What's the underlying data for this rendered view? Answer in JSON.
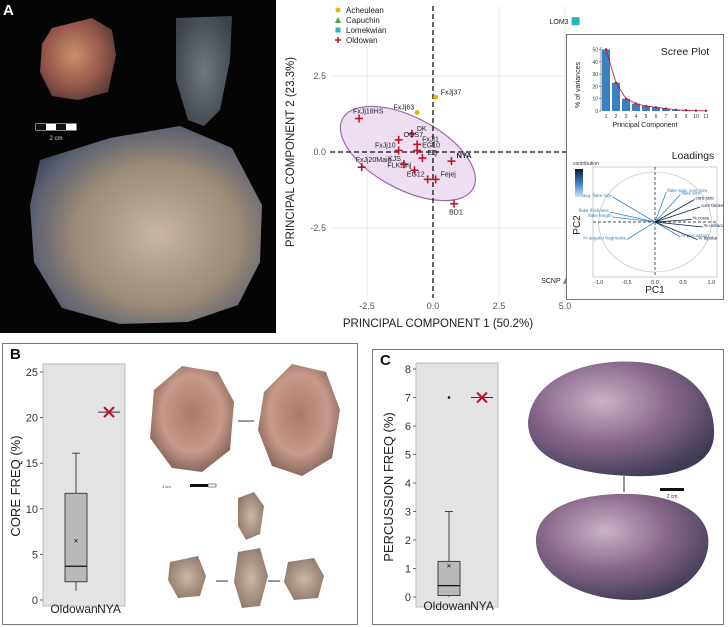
{
  "panel_a": {
    "letter": "A",
    "scale_label": "2 cm"
  },
  "panel_b": {
    "letter": "B",
    "scale_label": "1 cm"
  },
  "panel_c": {
    "letter": "C",
    "scale_label": "2 cm"
  },
  "colors": {
    "acheulean": "#e6b800",
    "capuchin": "#4aa832",
    "lomekwian": "#2bb5b5",
    "oldowan": "#c8102e",
    "ellipse_fill": "#e9d6ee",
    "ellipse_stroke": "#9b6aa8",
    "bar": "#3b7fc0"
  },
  "chart_data": [
    {
      "id": "pca",
      "type": "scatter",
      "xlabel": "PRINCIPAL COMPONENT 1 (50.2%)",
      "ylabel": "PRINCIPAL COMPONENT 2 (23.3%)",
      "xlim": [
        -3.9,
        6.4
      ],
      "ylim": [
        -4.8,
        4.8
      ],
      "x_ticks": [
        -2.5,
        0.0,
        2.5,
        5.0
      ],
      "y_ticks": [
        -2.5,
        0.0,
        2.5
      ],
      "x_tick_labels": [
        "-2.5",
        "0.0",
        "2.5",
        "5.0"
      ],
      "y_tick_labels": [
        "-2.5",
        "0.0",
        "2.5"
      ],
      "legend": [
        {
          "name": "Acheulean",
          "marker": "dot"
        },
        {
          "name": "Capuchin",
          "marker": "triangle"
        },
        {
          "name": "Lomekwian",
          "marker": "square"
        },
        {
          "name": "Oldowan",
          "marker": "plus"
        }
      ],
      "points": [
        {
          "label": "LOM3",
          "group": "Lomekwian",
          "x": 5.4,
          "y": 4.3
        },
        {
          "label": "FxJj37",
          "group": "Acheulean",
          "x": 0.1,
          "y": 1.8
        },
        {
          "label": "FxJj63",
          "group": "Acheulean",
          "x": -0.6,
          "y": 1.3
        },
        {
          "label": "FxJj18HS",
          "group": "Oldowan",
          "x": -2.8,
          "y": 1.1
        },
        {
          "label": "DK",
          "group": "Oldowan",
          "x": -0.8,
          "y": 0.6
        },
        {
          "label": "OGS7",
          "group": "Oldowan",
          "x": -1.3,
          "y": 0.4
        },
        {
          "label": "FxJj1",
          "group": "Oldowan",
          "x": -0.6,
          "y": 0.25
        },
        {
          "label": "FxJj10",
          "group": "Oldowan",
          "x": -1.3,
          "y": 0.05
        },
        {
          "label": "EG10",
          "group": "Oldowan",
          "x": -0.6,
          "y": 0.05
        },
        {
          "label": "KJS",
          "group": "Oldowan",
          "x": -1.1,
          "y": -0.4
        },
        {
          "label": "EQ",
          "group": "Oldowan",
          "x": -0.4,
          "y": -0.2
        },
        {
          "label": "NYA",
          "group": "Oldowan",
          "x": 0.7,
          "y": -0.3
        },
        {
          "label": "FxJj20Main",
          "group": "Oldowan",
          "x": -2.7,
          "y": -0.5
        },
        {
          "label": "FLKZinj",
          "group": "Oldowan",
          "x": -0.7,
          "y": -0.6
        },
        {
          "label": "Fejej",
          "group": "Oldowan",
          "x": 0.1,
          "y": -0.9
        },
        {
          "label": "EG12",
          "group": "Oldowan",
          "x": -0.2,
          "y": -0.9
        },
        {
          "label": "BD1",
          "group": "Oldowan",
          "x": 0.8,
          "y": -1.7
        },
        {
          "label": "SCNP",
          "group": "Capuchin",
          "x": 5.1,
          "y": -4.2
        }
      ]
    },
    {
      "id": "scree",
      "type": "bar",
      "title": "Scree Plot",
      "xlabel": "Principal Component",
      "ylabel": "% of variances",
      "categories": [
        "1",
        "2",
        "3",
        "4",
        "5",
        "6",
        "7",
        "8",
        "9",
        "10",
        "11"
      ],
      "values": [
        50,
        23,
        10,
        6,
        4,
        3,
        2,
        1,
        0.6,
        0.3,
        0.1
      ],
      "ylim": [
        0,
        52
      ],
      "y_ticks": [
        0,
        10,
        20,
        30,
        40,
        50
      ],
      "y_tick_labels": [
        "0",
        "10",
        "20",
        "30",
        "40",
        "50"
      ]
    },
    {
      "id": "loadings",
      "type": "scatter",
      "title": "Loadings",
      "xlabel": "PC1",
      "ylabel": "PC2",
      "xlim": [
        -1.1,
        1.1
      ],
      "ylim": [
        -1.1,
        1.1
      ],
      "x_ticks": [
        -1.0,
        -0.5,
        0.0,
        0.5,
        1.0
      ],
      "x_tick_labels": [
        "-1.0",
        "-0.5",
        "0.0",
        "0.5",
        "1.0"
      ],
      "colorbar_label": "contribution",
      "vectors": [
        {
          "label": "avg. flake size",
          "x": -0.75,
          "y": 0.5
        },
        {
          "label": "flake size: core size",
          "x": 0.2,
          "y": 0.6
        },
        {
          "label": "flake size",
          "x": 0.45,
          "y": 0.55
        },
        {
          "label": "flake thickness",
          "x": -0.8,
          "y": 0.2
        },
        {
          "label": "flake length",
          "x": -0.75,
          "y": 0.1
        },
        {
          "label": "core size",
          "x": 0.7,
          "y": 0.45
        },
        {
          "label": "core thickness",
          "x": 0.8,
          "y": 0.3
        },
        {
          "label": "% cores",
          "x": 0.65,
          "y": 0.05
        },
        {
          "label": "% angular fragments",
          "x": -0.5,
          "y": -0.35
        },
        {
          "label": "% unifacial",
          "x": 0.85,
          "y": -0.1
        },
        {
          "label": "% percussion",
          "x": 0.45,
          "y": -0.3
        },
        {
          "label": "% bipolar",
          "x": 0.75,
          "y": -0.35
        }
      ]
    },
    {
      "id": "core_freq",
      "type": "box",
      "ylabel": "CORE FREQ (%)",
      "categories": [
        "Oldowan",
        "NYA"
      ],
      "ylim": [
        0,
        25
      ],
      "y_ticks": [
        0,
        5,
        10,
        15,
        20,
        25
      ],
      "y_tick_labels": [
        "0",
        "5",
        "10",
        "15",
        "20",
        "25"
      ],
      "box": {
        "min": 1,
        "q1": 2,
        "median": 3.7,
        "q3": 11.7,
        "max": 16.1,
        "mean": 6.5
      },
      "nya_value": 20.6
    },
    {
      "id": "percussion_freq",
      "type": "box",
      "ylabel": "PERCUSSION FREQ (%)",
      "categories": [
        "Oldowan",
        "NYA"
      ],
      "ylim": [
        0,
        8
      ],
      "y_ticks": [
        0,
        1,
        2,
        3,
        4,
        5,
        6,
        7,
        8
      ],
      "y_tick_labels": [
        "0",
        "1",
        "2",
        "3",
        "4",
        "5",
        "6",
        "7",
        "8"
      ],
      "box": {
        "min": 0,
        "q1": 0.05,
        "median": 0.4,
        "q3": 1.25,
        "max": 3.0,
        "mean": 1.1,
        "outlier": 7.0
      },
      "nya_value": 7.0
    }
  ]
}
